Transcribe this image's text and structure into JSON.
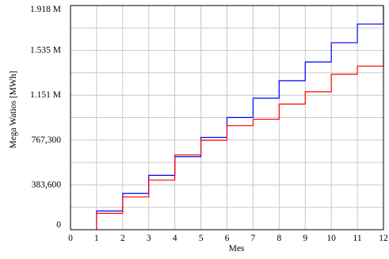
{
  "chart_data": {
    "type": "line",
    "step": true,
    "xlabel": "Mes",
    "ylabel": "Mega Watios [MWh]",
    "xlim": [
      0,
      12
    ],
    "ylim": [
      0,
      1918000
    ],
    "x_ticks": [
      "0",
      "1",
      "2",
      "3",
      "4",
      "5",
      "6",
      "7",
      "8",
      "9",
      "10",
      "11",
      "12"
    ],
    "y_ticks": [
      {
        "value": 0,
        "label": "0"
      },
      {
        "value": 383600,
        "label": "383,600"
      },
      {
        "value": 767300,
        "label": "767,300"
      },
      {
        "value": 1151000,
        "label": "1.151 M"
      },
      {
        "value": 1535000,
        "label": "1.535 M"
      },
      {
        "value": 1918000,
        "label": "1.918 M"
      }
    ],
    "grid": true,
    "series": [
      {
        "color": "#0000ff",
        "x": [
          1,
          2,
          3,
          4,
          5,
          6,
          7,
          8,
          9,
          10,
          11,
          12
        ],
        "values": [
          160000,
          310000,
          465000,
          625000,
          790000,
          960000,
          1125000,
          1275000,
          1435000,
          1600000,
          1760000,
          1918000
        ]
      },
      {
        "color": "#ff0000",
        "x": [
          1,
          2,
          3,
          4,
          5,
          6,
          7,
          8,
          9,
          10,
          11,
          12
        ],
        "values": [
          140000,
          280000,
          425000,
          640000,
          765000,
          890000,
          945000,
          1075000,
          1180000,
          1330000,
          1400000,
          1530000
        ]
      }
    ]
  }
}
